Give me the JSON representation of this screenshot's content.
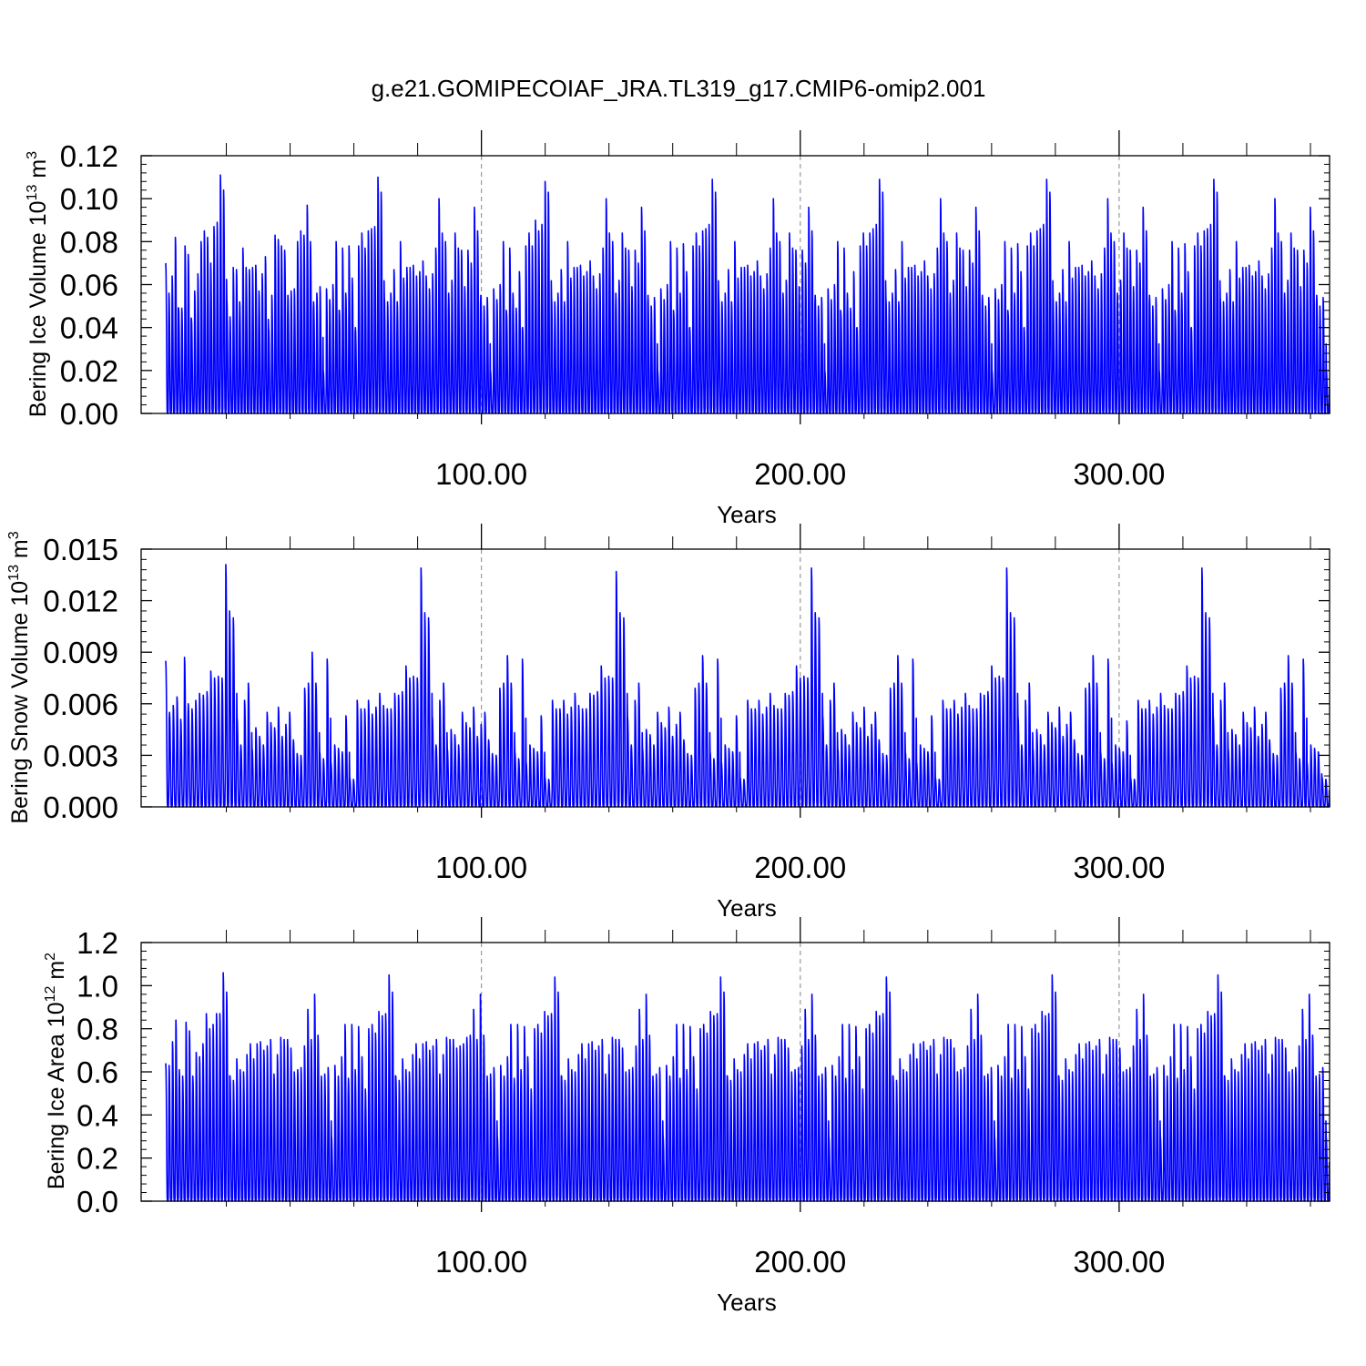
{
  "title": "g.e21.GOMIPECOIAF_JRA.TL319_g17.CMIP6-omip2.001",
  "series_color": "#0000ff",
  "chart_data": [
    {
      "type": "line",
      "title": "",
      "xlabel": "Years",
      "ylabel": {
        "main": "Bering Ice Volume 10",
        "exp": "13",
        "unit": " m",
        "unit_exp": "3"
      },
      "xlim": [
        1,
        366
      ],
      "ylim": [
        0,
        0.12
      ],
      "xticks": [
        100,
        200,
        300
      ],
      "xtick_labels": [
        "100.00",
        "200.00",
        "300.00"
      ],
      "yticks": [
        0,
        0.02,
        0.04,
        0.06,
        0.08,
        0.1,
        0.12
      ],
      "ytick_labels": [
        "0.00",
        "0.02",
        "0.04",
        "0.06",
        "0.08",
        "0.10",
        "0.12"
      ],
      "grid": "vertical dashed at major x ticks",
      "annual_peaks": [
        0.07,
        0.056,
        0.064,
        0.082,
        0.049,
        0.049,
        0.078,
        0.074,
        0.044,
        0.057,
        0.065,
        0.08,
        0.085,
        0.082,
        0.07,
        0.087,
        0.089,
        0.111,
        0.104,
        0.053,
        0.045,
        0.068,
        0.067,
        0.052,
        0.077,
        0.068,
        0.067,
        0.068,
        0.069,
        0.057,
        0.065,
        0.073,
        0.04,
        0.055,
        0.083,
        0.081,
        0.078,
        0.076,
        0.055,
        0.057,
        0.058,
        0.08,
        0.085,
        0.083,
        0.097,
        0.08,
        0.052,
        0.056,
        0.059,
        0.02,
        0.058,
        0.053,
        0.06,
        0.08,
        0.048,
        0.077,
        0.056,
        0.078,
        0.063,
        0.04,
        0.078,
        0.084,
        0.077,
        0.085,
        0.086,
        0.087,
        0.11,
        0.103,
        0.054,
        0.052,
        0.056,
        0.067,
        0.052,
        0.08,
        0.063,
        0.068,
        0.068,
        0.069,
        0.064,
        0.066,
        0.071,
        0.064,
        0.058,
        0.065,
        0.077,
        0.1,
        0.084,
        0.08,
        0.056,
        0.062,
        0.084,
        0.077,
        0.076,
        0.059,
        0.076,
        0.07,
        0.096,
        0.085,
        0.055,
        0.05,
        0.054,
        0.02,
        0.058,
        0.053,
        0.06,
        0.08,
        0.047,
        0.077,
        0.056,
        0.049,
        0.066,
        0.04,
        0.078,
        0.084,
        0.078,
        0.09,
        0.085,
        0.088,
        0.108,
        0.103,
        0.054,
        0.052,
        0.056,
        0.067,
        0.052,
        0.08,
        0.063,
        0.068,
        0.068,
        0.069,
        0.064,
        0.066,
        0.071,
        0.064,
        0.058,
        0.065,
        0.077,
        0.1,
        0.084,
        0.08,
        0.056,
        0.062,
        0.084,
        0.077,
        0.076,
        0.059,
        0.076,
        0.07,
        0.096,
        0.085,
        0.055,
        0.05,
        0.054,
        0.02,
        0.058,
        0.053,
        0.06,
        0.08,
        0.047,
        0.077,
        0.056,
        0.079,
        0.066,
        0.04,
        0.078,
        0.084,
        0.078,
        0.085,
        0.086,
        0.088,
        0.109,
        0.103,
        0.054,
        0.052,
        0.056,
        0.067,
        0.052,
        0.08,
        0.063,
        0.068,
        0.068,
        0.069,
        0.064,
        0.066,
        0.071,
        0.064,
        0.058,
        0.065,
        0.077,
        0.1,
        0.084,
        0.08,
        0.056,
        0.062,
        0.084,
        0.077,
        0.076,
        0.059,
        0.076,
        0.07,
        0.096,
        0.085,
        0.055,
        0.05,
        0.054,
        0.02,
        0.058,
        0.053,
        0.06,
        0.08,
        0.047,
        0.077,
        0.056,
        0.049,
        0.066,
        0.04,
        0.078,
        0.084,
        0.078,
        0.084,
        0.086,
        0.088,
        0.109,
        0.103,
        0.054,
        0.052,
        0.056,
        0.067,
        0.052,
        0.08,
        0.063,
        0.068,
        0.068,
        0.069,
        0.064,
        0.066,
        0.071,
        0.064,
        0.058,
        0.065,
        0.077,
        0.1,
        0.084,
        0.08,
        0.056,
        0.062,
        0.084,
        0.077,
        0.076,
        0.059,
        0.076,
        0.07,
        0.096,
        0.085,
        0.055,
        0.05,
        0.054,
        0.02,
        0.058,
        0.053,
        0.06,
        0.08,
        0.047,
        0.077,
        0.056,
        0.079,
        0.066,
        0.04,
        0.078,
        0.084,
        0.078,
        0.085,
        0.086,
        0.088,
        0.109,
        0.103,
        0.054,
        0.052,
        0.056,
        0.067,
        0.052,
        0.08,
        0.063,
        0.068,
        0.068,
        0.069,
        0.064,
        0.066,
        0.071,
        0.064,
        0.058,
        0.065,
        0.077,
        0.1,
        0.084,
        0.08,
        0.056,
        0.062,
        0.084,
        0.077,
        0.076,
        0.059,
        0.076,
        0.07,
        0.096,
        0.085,
        0.055,
        0.05,
        0.054,
        0.02,
        0.058,
        0.053,
        0.06,
        0.08,
        0.047,
        0.077,
        0.056,
        0.079,
        0.066,
        0.04,
        0.078,
        0.084,
        0.078,
        0.085,
        0.086,
        0.088,
        0.109,
        0.103,
        0.054,
        0.052,
        0.056,
        0.067,
        0.052,
        0.08,
        0.063,
        0.068,
        0.068,
        0.069,
        0.064,
        0.066,
        0.071,
        0.064,
        0.058,
        0.065,
        0.077,
        0.1,
        0.084,
        0.08,
        0.056,
        0.062,
        0.084,
        0.077,
        0.076,
        0.059,
        0.076,
        0.07,
        0.096,
        0.085,
        0.055,
        0.05,
        0.054,
        0.02
      ]
    },
    {
      "type": "line",
      "title": "",
      "xlabel": "Years",
      "ylabel": {
        "main": "Bering Snow Volume 10",
        "exp": "13",
        "unit": " m",
        "unit_exp": "3"
      },
      "xlim": [
        1,
        366
      ],
      "ylim": [
        0,
        0.015
      ],
      "xticks": [
        100,
        200,
        300
      ],
      "xtick_labels": [
        "100.00",
        "200.00",
        "300.00"
      ],
      "yticks": [
        0,
        0.003,
        0.006,
        0.009,
        0.012,
        0.015
      ],
      "ytick_labels": [
        "0.000",
        "0.003",
        "0.006",
        "0.009",
        "0.012",
        "0.015"
      ],
      "grid": "vertical dashed at major x ticks",
      "annual_peaks": [
        0.0085,
        0.0055,
        0.0059,
        0.0064,
        0.0051,
        0.0087,
        0.006,
        0.0057,
        0.0062,
        0.0066,
        0.0065,
        0.0067,
        0.0079,
        0.0075,
        0.0076,
        0.0075,
        0.0141,
        0.0114,
        0.011,
        0.0052,
        0.0036,
        0.0062,
        0.0072,
        0.0034,
        0.0046,
        0.0041,
        0.0036,
        0.0055,
        0.0049,
        0.0046,
        0.0058,
        0.0041,
        0.0048,
        0.0055,
        0.0039,
        0.0031,
        0.003,
        0.0069,
        0.0072,
        0.009,
        0.0072,
        0.0032,
        0.0028,
        0.0086,
        0.0026,
        0.0036,
        0.0034,
        0.0032,
        0.0053,
        0.0017,
        0.0016,
        0.0062,
        0.0057,
        0.0057,
        0.0062,
        0.0054,
        0.0058,
        0.0066,
        0.0059,
        0.0057,
        0.0057,
        0.0066,
        0.0065,
        0.0067,
        0.0082,
        0.0075,
        0.0076,
        0.0075,
        0.0139,
        0.0113,
        0.011,
        0.0053,
        0.0036,
        0.0062,
        0.0072,
        0.0034,
        0.0045,
        0.0042,
        0.0036,
        0.0055,
        0.0049,
        0.0046,
        0.0058,
        0.0041,
        0.0048,
        0.0055,
        0.0039,
        0.0031,
        0.003,
        0.0069,
        0.0072,
        0.0088,
        0.0072,
        0.0032,
        0.0028,
        0.0086,
        0.0026,
        0.0036,
        0.0034,
        0.0032,
        0.0053,
        0.0017,
        0.0016,
        0.0062,
        0.0057,
        0.0057,
        0.0062,
        0.0054,
        0.0058,
        0.0066,
        0.0059,
        0.0057,
        0.0057,
        0.0066,
        0.0065,
        0.0067,
        0.0082,
        0.0075,
        0.0076,
        0.0075,
        0.0137,
        0.0113,
        0.011,
        0.0053,
        0.0036,
        0.0062,
        0.0072,
        0.0034,
        0.0045,
        0.0042,
        0.0036,
        0.0055,
        0.0049,
        0.0046,
        0.0058,
        0.0041,
        0.0048,
        0.0055,
        0.0039,
        0.0031,
        0.003,
        0.0069,
        0.0072,
        0.0088,
        0.0072,
        0.0032,
        0.0028,
        0.0086,
        0.0026,
        0.0036,
        0.0034,
        0.0032,
        0.0053,
        0.0017,
        0.0016,
        0.0062,
        0.0057,
        0.0057,
        0.0062,
        0.0054,
        0.0058,
        0.0066,
        0.0059,
        0.0057,
        0.0057,
        0.0066,
        0.0065,
        0.0067,
        0.0082,
        0.0075,
        0.0076,
        0.0075,
        0.0139,
        0.0113,
        0.011,
        0.0053,
        0.0036,
        0.0062,
        0.0072,
        0.0034,
        0.0045,
        0.0042,
        0.0036,
        0.0055,
        0.0049,
        0.0046,
        0.0058,
        0.0041,
        0.0048,
        0.0055,
        0.0039,
        0.0031,
        0.003,
        0.0069,
        0.0072,
        0.0088,
        0.0072,
        0.0032,
        0.0028,
        0.0086,
        0.0026,
        0.0036,
        0.0034,
        0.0032,
        0.0053,
        0.0017,
        0.0016,
        0.0062,
        0.0057,
        0.0057,
        0.0062,
        0.0054,
        0.0058,
        0.0066,
        0.0059,
        0.0057,
        0.0057,
        0.0066,
        0.0065,
        0.0067,
        0.0082,
        0.0075,
        0.0076,
        0.0075,
        0.0139,
        0.0113,
        0.011,
        0.0053,
        0.0036,
        0.0062,
        0.0072,
        0.0034,
        0.0045,
        0.0042,
        0.0036,
        0.0055,
        0.0049,
        0.0046,
        0.0058,
        0.0041,
        0.0048,
        0.0055,
        0.0039,
        0.0031,
        0.003,
        0.0069,
        0.0072,
        0.0088,
        0.0072,
        0.0032,
        0.0028,
        0.0086,
        0.0026,
        0.0036,
        0.0034,
        0.0032,
        0.005,
        0.0017,
        0.0016,
        0.0062,
        0.0057,
        0.0057,
        0.0062,
        0.0054,
        0.0058,
        0.0066,
        0.0059,
        0.0057,
        0.0057,
        0.0066,
        0.0065,
        0.0067,
        0.0082,
        0.0075,
        0.0076,
        0.0075,
        0.0139,
        0.0113,
        0.011,
        0.0053,
        0.0036,
        0.0062,
        0.0072,
        0.0034,
        0.0045,
        0.0042,
        0.0036,
        0.0055,
        0.0049,
        0.0046,
        0.0058,
        0.0041,
        0.0048,
        0.0055,
        0.0039,
        0.0031,
        0.003,
        0.0069,
        0.0072,
        0.0088,
        0.0072,
        0.0032,
        0.0028,
        0.0086,
        0.0026,
        0.0036,
        0.0034,
        0.0032,
        0.0017,
        0.0016
      ]
    },
    {
      "type": "line",
      "title": "",
      "xlabel": "Years",
      "ylabel": {
        "main": "Bering Ice Area 10",
        "exp": "12",
        "unit": " m",
        "unit_exp": "2"
      },
      "xlim": [
        1,
        366
      ],
      "ylim": [
        0,
        1.2
      ],
      "xticks": [
        100,
        200,
        300
      ],
      "xtick_labels": [
        "100.00",
        "200.00",
        "300.00"
      ],
      "yticks": [
        0,
        0.2,
        0.4,
        0.6,
        0.8,
        1.0,
        1.2
      ],
      "ytick_labels": [
        "0.0",
        "0.2",
        "0.4",
        "0.6",
        "0.8",
        "1.0",
        "1.2"
      ],
      "grid": "vertical dashed at major x ticks",
      "annual_peaks": [
        0.64,
        0.63,
        0.74,
        0.84,
        0.61,
        0.58,
        0.83,
        0.79,
        0.58,
        0.69,
        0.67,
        0.73,
        0.87,
        0.8,
        0.82,
        0.87,
        0.87,
        1.06,
        0.97,
        0.58,
        0.56,
        0.66,
        0.61,
        0.6,
        0.68,
        0.73,
        0.66,
        0.73,
        0.74,
        0.7,
        0.72,
        0.75,
        0.59,
        0.68,
        0.76,
        0.75,
        0.75,
        0.71,
        0.6,
        0.61,
        0.62,
        0.72,
        0.89,
        0.75,
        0.96,
        0.77,
        0.58,
        0.59,
        0.62,
        0.3,
        0.63,
        0.58,
        0.67,
        0.82,
        0.57,
        0.82,
        0.61,
        0.81,
        0.67,
        0.52,
        0.8,
        0.82,
        0.78,
        0.88,
        0.86,
        0.87,
        1.05,
        0.97,
        0.58,
        0.56,
        0.66,
        0.61,
        0.6,
        0.68,
        0.73,
        0.66,
        0.73,
        0.74,
        0.7,
        0.72,
        0.75,
        0.59,
        0.68,
        0.76,
        0.75,
        0.75,
        0.71,
        0.72,
        0.73,
        0.76,
        0.77,
        0.89,
        0.75,
        0.96,
        0.77,
        0.58,
        0.59,
        0.62,
        0.3,
        0.63,
        0.58,
        0.67,
        0.82,
        0.57,
        0.82,
        0.61,
        0.81,
        0.67,
        0.52,
        0.8,
        0.82,
        0.78,
        0.88,
        0.86,
        0.87,
        1.04,
        0.97,
        0.58,
        0.56,
        0.66,
        0.61,
        0.6,
        0.68,
        0.73,
        0.66,
        0.73,
        0.74,
        0.7,
        0.72,
        0.75,
        0.59,
        0.68,
        0.76,
        0.75,
        0.75,
        0.71,
        0.6,
        0.61,
        0.62,
        0.72,
        0.89,
        0.75,
        0.96,
        0.77,
        0.58,
        0.59,
        0.62,
        0.3,
        0.63,
        0.58,
        0.67,
        0.82,
        0.57,
        0.82,
        0.61,
        0.81,
        0.67,
        0.52,
        0.8,
        0.82,
        0.78,
        0.88,
        0.86,
        0.87,
        1.04,
        0.97,
        0.58,
        0.56,
        0.66,
        0.61,
        0.6,
        0.68,
        0.73,
        0.66,
        0.73,
        0.74,
        0.7,
        0.72,
        0.75,
        0.59,
        0.68,
        0.76,
        0.75,
        0.75,
        0.71,
        0.6,
        0.61,
        0.62,
        0.72,
        0.89,
        0.75,
        0.96,
        0.77,
        0.58,
        0.59,
        0.62,
        0.3,
        0.63,
        0.58,
        0.67,
        0.82,
        0.57,
        0.82,
        0.61,
        0.81,
        0.67,
        0.52,
        0.8,
        0.82,
        0.78,
        0.88,
        0.86,
        0.87,
        1.04,
        0.97,
        0.58,
        0.56,
        0.66,
        0.61,
        0.6,
        0.68,
        0.73,
        0.66,
        0.73,
        0.74,
        0.7,
        0.72,
        0.75,
        0.59,
        0.68,
        0.76,
        0.75,
        0.75,
        0.71,
        0.6,
        0.61,
        0.62,
        0.72,
        0.89,
        0.75,
        0.96,
        0.77,
        0.58,
        0.59,
        0.62,
        0.3,
        0.63,
        0.58,
        0.67,
        0.82,
        0.57,
        0.82,
        0.61,
        0.81,
        0.67,
        0.52,
        0.8,
        0.82,
        0.78,
        0.88,
        0.86,
        0.87,
        1.05,
        0.97,
        0.58,
        0.56,
        0.66,
        0.61,
        0.6,
        0.68,
        0.73,
        0.66,
        0.73,
        0.74,
        0.7,
        0.72,
        0.75,
        0.59,
        0.68,
        0.76,
        0.75,
        0.75,
        0.71,
        0.6,
        0.61,
        0.62,
        0.72,
        0.89,
        0.75,
        0.96,
        0.77,
        0.58,
        0.59,
        0.62,
        0.3,
        0.63,
        0.58,
        0.67,
        0.82,
        0.57,
        0.82,
        0.61,
        0.81,
        0.67,
        0.52,
        0.8,
        0.82,
        0.78,
        0.88,
        0.86,
        0.87,
        1.05,
        0.97,
        0.58,
        0.56,
        0.66,
        0.61,
        0.6,
        0.68,
        0.73,
        0.66,
        0.73,
        0.74,
        0.7,
        0.72,
        0.75,
        0.59,
        0.68,
        0.76,
        0.75,
        0.75,
        0.71,
        0.6,
        0.61,
        0.62,
        0.72,
        0.89,
        0.75,
        0.96,
        0.77,
        0.58,
        0.59,
        0.62,
        0.3
      ]
    }
  ]
}
